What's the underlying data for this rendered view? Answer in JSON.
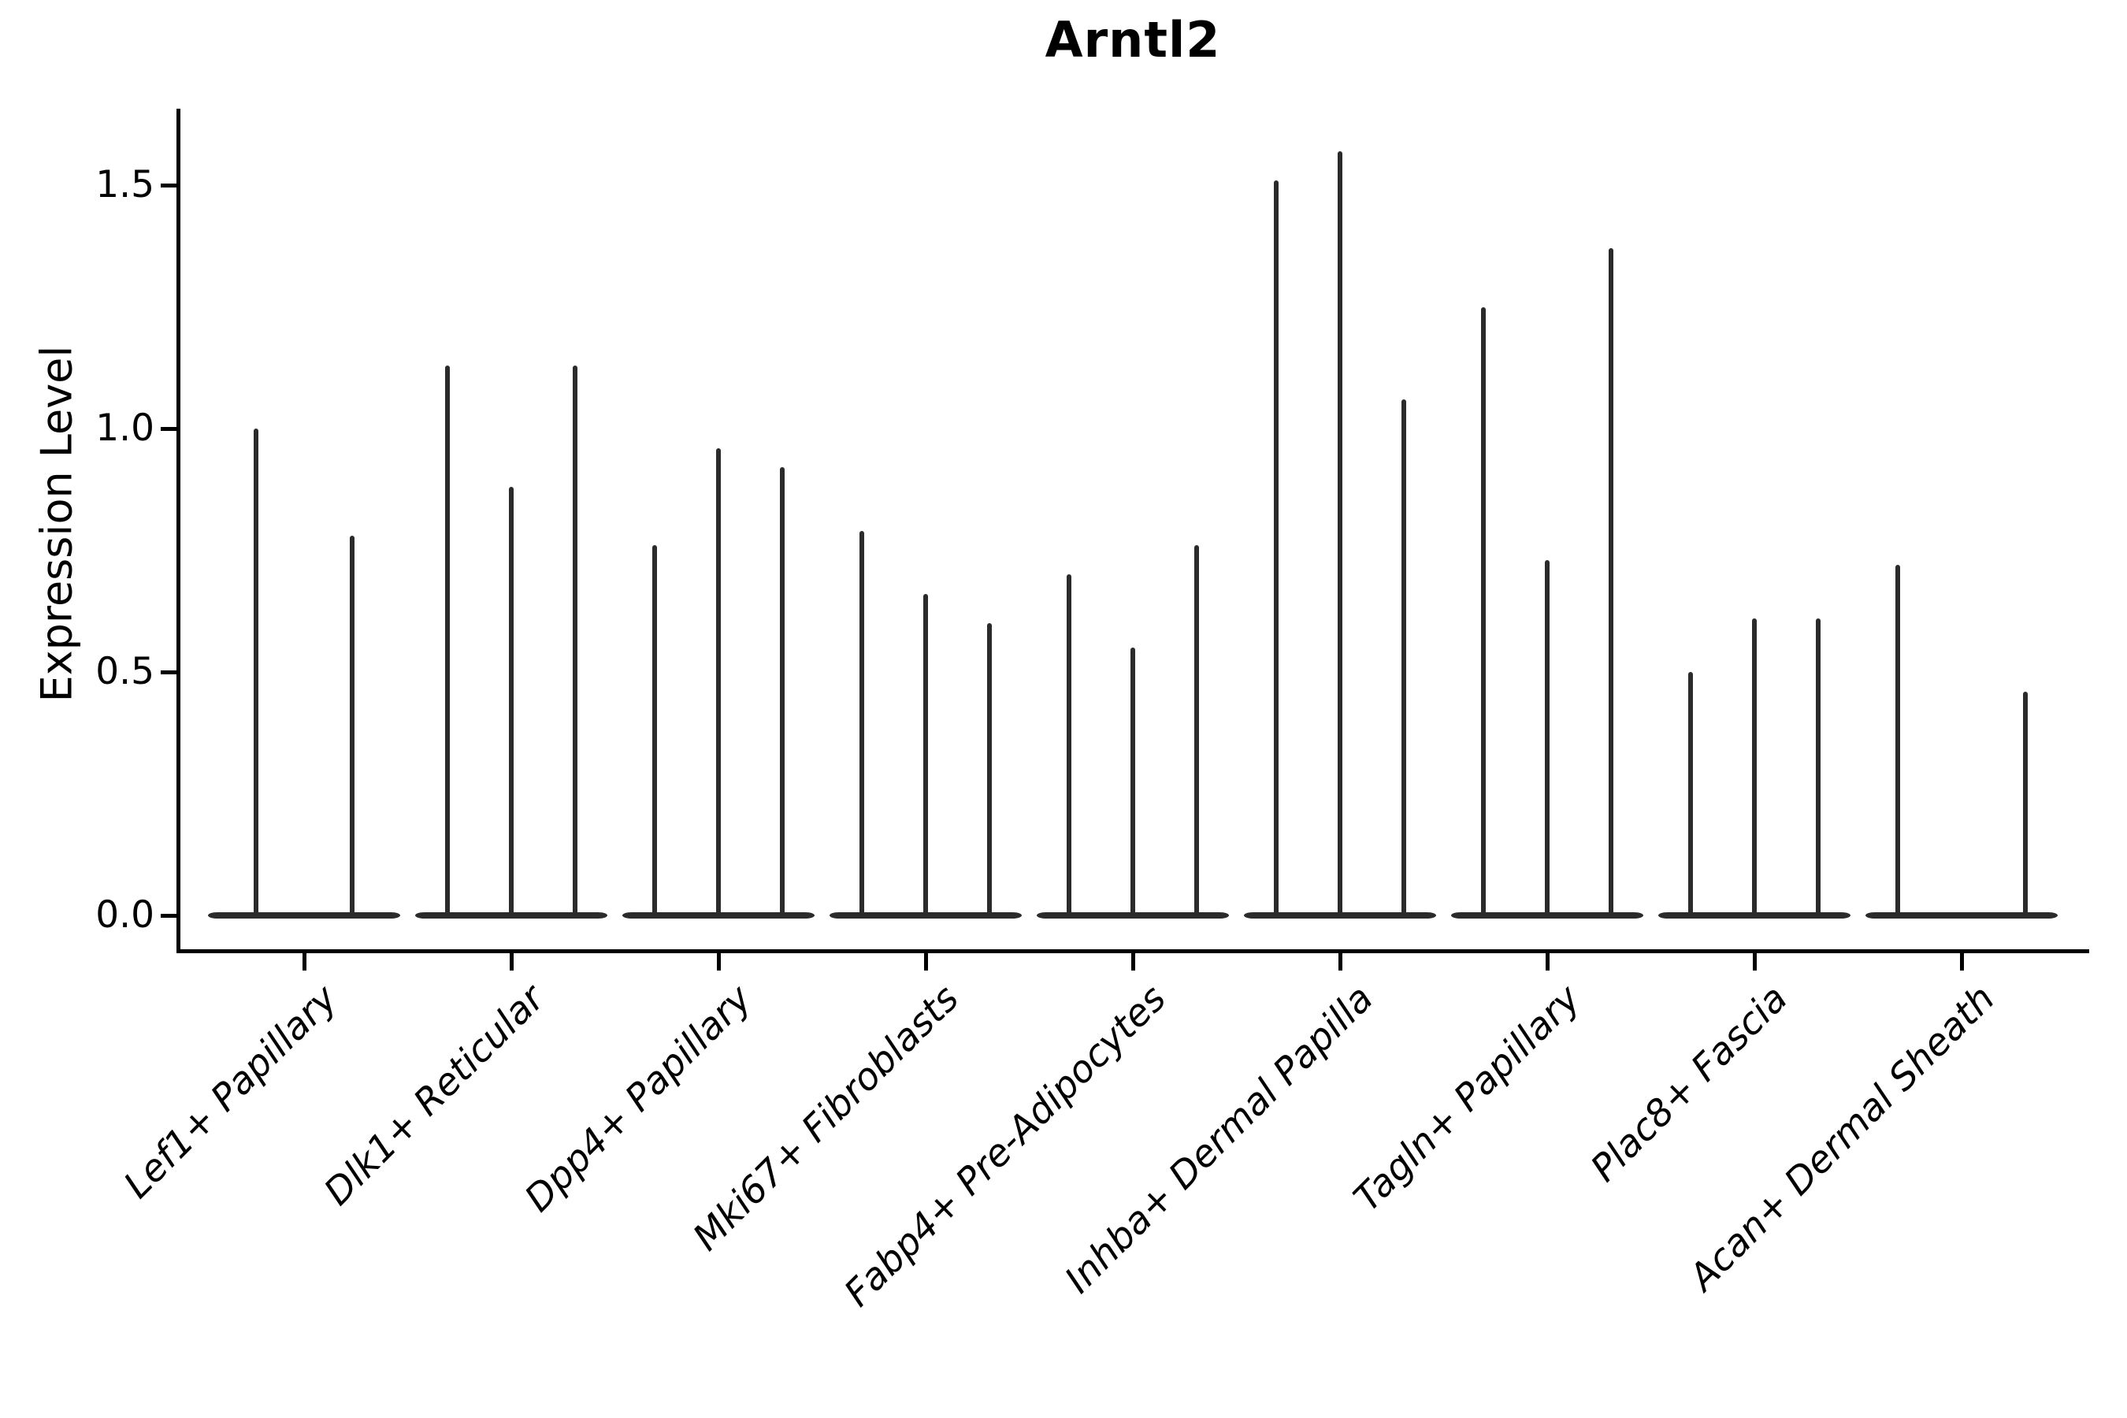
{
  "title": "Arntl2",
  "ylabel": "Expression Level",
  "chart_data": {
    "type": "violin",
    "title": "Arntl2",
    "xlabel": "",
    "ylabel": "Expression Level",
    "ylim": [
      -0.07,
      1.65
    ],
    "yticks": [
      0.0,
      0.5,
      1.0,
      1.5
    ],
    "ytick_labels": [
      "0.0",
      "0.5",
      "1.0",
      "1.5"
    ],
    "grid": false,
    "legend": "none",
    "categories": [
      "Lef1+ Papillary",
      "Dlk1+ Reticular",
      "Dpp4+ Papillary",
      "Mki67+ Fibroblasts",
      "Fabp4+ Pre-Adipocytes",
      "Inhba+ Dermal Papilla",
      "Tagln+ Papillary",
      "Plac8+ Fascia",
      "Acan+ Dermal Sheath"
    ],
    "groups": [
      {
        "label": "Lef1+ Papillary",
        "violin_max_values": [
          1.0,
          0.78
        ]
      },
      {
        "label": "Dlk1+ Reticular",
        "violin_max_values": [
          1.13,
          0.88,
          1.13
        ]
      },
      {
        "label": "Dpp4+ Papillary",
        "violin_max_values": [
          0.76,
          0.96,
          0.92
        ]
      },
      {
        "label": "Mki67+ Fibroblasts",
        "violin_max_values": [
          0.79,
          0.66,
          0.6
        ]
      },
      {
        "label": "Fabp4+ Pre-Adipocytes",
        "violin_max_values": [
          0.7,
          0.55,
          0.76
        ]
      },
      {
        "label": "Inhba+ Dermal Papilla",
        "violin_max_values": [
          1.51,
          1.57,
          1.06
        ]
      },
      {
        "label": "Tagln+ Papillary",
        "violin_max_values": [
          1.25,
          0.73,
          1.37
        ]
      },
      {
        "label": "Plac8+ Fascia",
        "violin_max_values": [
          0.5,
          0.61,
          0.61
        ]
      },
      {
        "label": "Acan+ Dermal Sheath",
        "violin_max_values": [
          0.72,
          0.0,
          0.46
        ]
      }
    ],
    "colors": {
      "ink": "#000000",
      "violin": "#2b2b2b"
    }
  }
}
